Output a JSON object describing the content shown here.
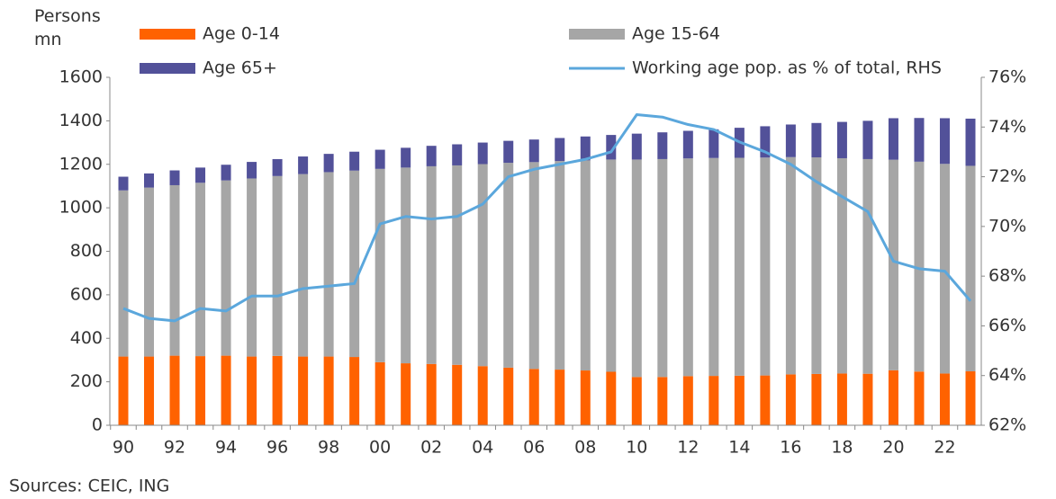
{
  "chart_data": {
    "type": "stacked-bar-line",
    "y_axis_label": "Persons mn",
    "source": "Sources: CEIC, ING",
    "categories": [
      "90",
      null,
      "92",
      null,
      "94",
      null,
      "96",
      null,
      "98",
      null,
      "00",
      null,
      "02",
      null,
      "04",
      null,
      "06",
      null,
      "08",
      null,
      "10",
      null,
      "12",
      null,
      "14",
      null,
      "16",
      null,
      "18",
      null,
      "20",
      null,
      "22",
      null
    ],
    "series": [
      {
        "name": "Age 0-14",
        "color": "#ff6200",
        "values": [
          316,
          316,
          320,
          318,
          320,
          316,
          319,
          316,
          316,
          314,
          290,
          285,
          282,
          278,
          272,
          265,
          259,
          256,
          252,
          246,
          222,
          222,
          226,
          227,
          228,
          229,
          234,
          236,
          238,
          237,
          253,
          247,
          238,
          248
        ]
      },
      {
        "name": "Age 15-64",
        "color": "#a6a6a6",
        "values": [
          764,
          777,
          784,
          797,
          806,
          819,
          827,
          839,
          848,
          857,
          889,
          900,
          909,
          917,
          929,
          942,
          951,
          959,
          966,
          976,
          1000,
          1002,
          1001,
          1002,
          1002,
          1002,
          999,
          996,
          990,
          987,
          968,
          965,
          964,
          945
        ]
      },
      {
        "name": "Age 65+",
        "color": "#525199",
        "values": [
          63,
          65,
          68,
          70,
          72,
          76,
          78,
          81,
          84,
          87,
          88,
          91,
          94,
          97,
          99,
          101,
          104,
          106,
          110,
          113,
          119,
          123,
          127,
          132,
          138,
          144,
          150,
          158,
          167,
          176,
          191,
          201,
          210,
          217
        ]
      },
      {
        "name": "Working age pop. as % of total, RHS",
        "color": "#5ba7dc",
        "axis": "y2",
        "type": "line",
        "values": [
          66.7,
          66.3,
          66.2,
          66.7,
          66.6,
          67.2,
          67.2,
          67.5,
          67.6,
          67.7,
          70.1,
          70.4,
          70.3,
          70.4,
          70.9,
          72.0,
          72.3,
          72.5,
          72.7,
          73.0,
          74.5,
          74.4,
          74.1,
          73.9,
          73.4,
          73.0,
          72.5,
          71.8,
          71.2,
          70.6,
          68.6,
          68.3,
          68.2,
          67.0
        ]
      }
    ],
    "ylim": [
      0,
      1600
    ],
    "yticks": [
      0,
      200,
      400,
      600,
      800,
      1000,
      1200,
      1400,
      1600
    ],
    "y2lim": [
      62,
      76
    ],
    "y2ticks": [
      {
        "value": 62,
        "label": "62%"
      },
      {
        "value": 64,
        "label": "64%"
      },
      {
        "value": 66,
        "label": "66%"
      },
      {
        "value": 68,
        "label": "68%"
      },
      {
        "value": 70,
        "label": "70%"
      },
      {
        "value": 72,
        "label": "72%"
      },
      {
        "value": 74,
        "label": "74%"
      },
      {
        "value": 76,
        "label": "76%"
      }
    ],
    "grid": false
  }
}
